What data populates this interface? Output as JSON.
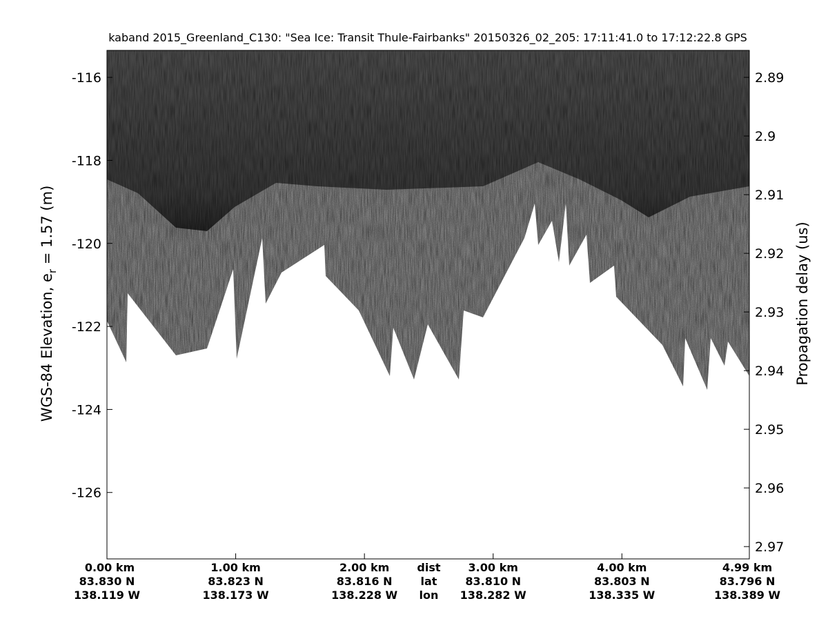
{
  "chart_data": {
    "type": "echogram",
    "title": "kaband 2015_Greenland_C130: \"Sea Ice: Transit Thule-Fairbanks\"  20150326_02_205: 17:11:41.0 to 17:12:22.8 GPS",
    "ylabel": [
      "WGS-84 Elevation, e",
      "r",
      " = 1.57 (m)"
    ],
    "y2label": "Propagation delay (us)",
    "ylim": [
      -127.6,
      -115.35
    ],
    "yticks": [
      -126,
      -124,
      -122,
      -120,
      -118,
      -116
    ],
    "y2lim": [
      2.9721,
      2.8854
    ],
    "y2ticks": [
      2.89,
      2.9,
      2.91,
      2.92,
      2.93,
      2.94,
      2.95,
      2.96,
      2.97
    ],
    "xlim": [
      0,
      4.99
    ],
    "xticks": [
      {
        "value": 0,
        "label": "0.00 km"
      },
      {
        "value": 1,
        "label": "1.00 km"
      },
      {
        "value": 2,
        "label": "2.00 km"
      },
      {
        "value": 3,
        "label": "3.00 km"
      },
      {
        "value": 4,
        "label": "4.00 km"
      },
      {
        "value": 4.99,
        "label": "4.99 km"
      }
    ],
    "lat_labels": [
      "83.830 N",
      "83.823 N",
      "83.816 N",
      "83.810 N",
      "83.803 N",
      "83.796 N"
    ],
    "lon_labels": [
      "138.119 W",
      "138.173 W",
      "138.228 W",
      "138.282 W",
      "138.335 W",
      "138.389 W"
    ],
    "row_labels": [
      "dist",
      "lat",
      "lon"
    ]
  }
}
